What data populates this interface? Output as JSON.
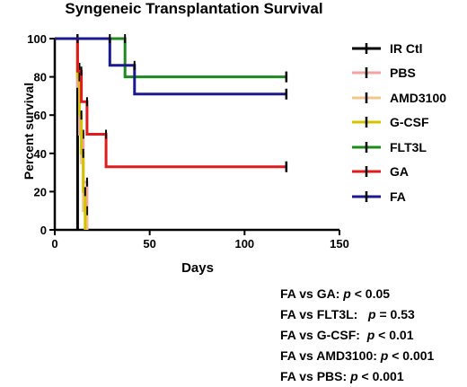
{
  "chart_data": {
    "type": "line",
    "title": "Syngeneic Transplantation Survival",
    "xlabel": "Days",
    "ylabel": "Percent survival",
    "xlim": [
      0,
      150
    ],
    "ylim": [
      0,
      100
    ],
    "x_ticks": [
      "0",
      "50",
      "100",
      "150"
    ],
    "y_ticks": [
      "0",
      "20",
      "40",
      "60",
      "80",
      "100"
    ],
    "grid": false,
    "legend_position": "right",
    "series": [
      {
        "name": "IR Ctl",
        "color": "#000000",
        "steps": [
          [
            0,
            100
          ],
          [
            12,
            100
          ],
          [
            12,
            0
          ]
        ]
      },
      {
        "name": "PBS",
        "color": "#f4a3a3",
        "steps": [
          [
            0,
            100
          ],
          [
            12,
            100
          ],
          [
            12,
            75
          ],
          [
            13,
            75
          ],
          [
            13,
            50
          ],
          [
            15,
            50
          ],
          [
            15,
            25
          ],
          [
            17,
            25
          ],
          [
            17,
            0
          ]
        ]
      },
      {
        "name": "AMD3100",
        "color": "#f5c48a",
        "steps": [
          [
            0,
            100
          ],
          [
            12,
            100
          ],
          [
            12,
            85
          ],
          [
            13,
            85
          ],
          [
            13,
            60
          ],
          [
            14,
            60
          ],
          [
            14,
            35
          ],
          [
            15,
            35
          ],
          [
            15,
            10
          ],
          [
            17,
            10
          ],
          [
            17,
            0
          ]
        ]
      },
      {
        "name": "G-CSF",
        "color": "#d4c400",
        "steps": [
          [
            0,
            100
          ],
          [
            12,
            100
          ],
          [
            12,
            80
          ],
          [
            13,
            80
          ],
          [
            13,
            60
          ],
          [
            14,
            60
          ],
          [
            14,
            40
          ],
          [
            15,
            40
          ],
          [
            15,
            20
          ],
          [
            16,
            20
          ],
          [
            16,
            0
          ]
        ]
      },
      {
        "name": "FLT3L",
        "color": "#1e8a1e",
        "steps": [
          [
            0,
            100
          ],
          [
            37,
            100
          ],
          [
            37,
            80
          ],
          [
            122,
            80
          ]
        ]
      },
      {
        "name": "GA",
        "color": "#e31a1c",
        "steps": [
          [
            0,
            100
          ],
          [
            12,
            100
          ],
          [
            12,
            83
          ],
          [
            14,
            83
          ],
          [
            14,
            67
          ],
          [
            17,
            67
          ],
          [
            17,
            50
          ],
          [
            27,
            50
          ],
          [
            27,
            33
          ],
          [
            122,
            33
          ]
        ]
      },
      {
        "name": "FA",
        "color": "#1a1a8c",
        "steps": [
          [
            0,
            100
          ],
          [
            29,
            100
          ],
          [
            29,
            86
          ],
          [
            42,
            86
          ],
          [
            42,
            71
          ],
          [
            122,
            71
          ]
        ]
      }
    ],
    "censor_marks": [
      {
        "series": "FLT3L",
        "x": 122,
        "y": 80
      },
      {
        "series": "GA",
        "x": 122,
        "y": 33
      },
      {
        "series": "FA",
        "x": 122,
        "y": 71
      }
    ]
  },
  "stats": [
    {
      "label": "FA vs GA: ",
      "p": "p",
      "rest": " < 0.05"
    },
    {
      "label": "FA vs FLT3L:   ",
      "p": "p",
      "rest": " = 0.53"
    },
    {
      "label": "FA vs G-CSF:  ",
      "p": "p",
      "rest": " < 0.01"
    },
    {
      "label": "FA vs AMD3100: ",
      "p": "p",
      "rest": " < 0.001"
    },
    {
      "label": "FA vs PBS: ",
      "p": "p",
      "rest": " < 0.001"
    }
  ]
}
